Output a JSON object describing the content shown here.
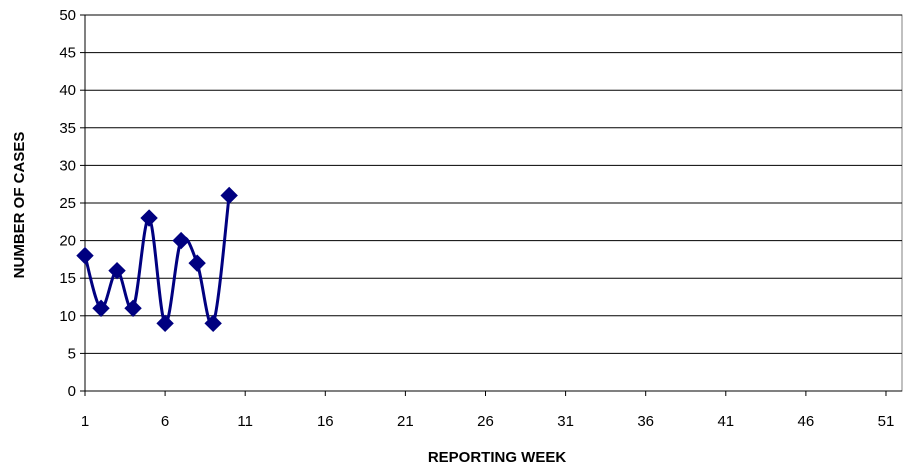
{
  "chart_data": {
    "type": "line",
    "title": "",
    "xlabel": "REPORTING WEEK",
    "ylabel": "NUMBER OF CASES",
    "xlim": [
      1,
      52
    ],
    "ylim": [
      0,
      50
    ],
    "x_ticks": [
      1,
      6,
      11,
      16,
      21,
      26,
      31,
      36,
      41,
      46,
      51
    ],
    "y_ticks": [
      0,
      5,
      10,
      15,
      20,
      25,
      30,
      35,
      40,
      45,
      50
    ],
    "grid": "horizontal",
    "legend": "none",
    "series": [
      {
        "x": [
          1,
          2,
          3,
          4,
          5,
          6,
          7,
          8,
          9,
          10
        ],
        "values": [
          18,
          11,
          16,
          11,
          23,
          9,
          20,
          17,
          9,
          26
        ],
        "color": "#000080",
        "marker": "diamond",
        "smooth": true
      }
    ]
  }
}
